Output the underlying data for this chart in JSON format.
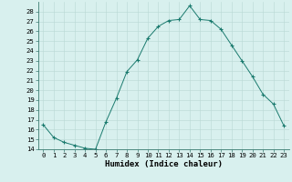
{
  "xlabel": "Humidex (Indice chaleur)",
  "x": [
    0,
    1,
    2,
    3,
    4,
    5,
    6,
    7,
    8,
    9,
    10,
    11,
    12,
    13,
    14,
    15,
    16,
    17,
    18,
    19,
    20,
    21,
    22,
    23
  ],
  "y": [
    16.5,
    15.2,
    14.7,
    14.4,
    14.1,
    14.0,
    16.8,
    19.2,
    21.9,
    23.1,
    25.3,
    26.5,
    27.1,
    27.2,
    28.6,
    27.2,
    27.1,
    26.2,
    24.6,
    23.0,
    21.4,
    19.6,
    18.6,
    16.4
  ],
  "ylim": [
    14,
    29
  ],
  "xlim": [
    -0.5,
    23.5
  ],
  "yticks": [
    14,
    15,
    16,
    17,
    18,
    19,
    20,
    21,
    22,
    23,
    24,
    25,
    26,
    27,
    28
  ],
  "xticks": [
    0,
    1,
    2,
    3,
    4,
    5,
    6,
    7,
    8,
    9,
    10,
    11,
    12,
    13,
    14,
    15,
    16,
    17,
    18,
    19,
    20,
    21,
    22,
    23
  ],
  "line_color": "#1a7a6e",
  "marker": "+",
  "bg_color": "#d8f0ee",
  "grid_color": "#b8d8d4",
  "tick_label_fontsize": 5.2,
  "xlabel_fontsize": 6.5,
  "lw": 0.7,
  "markersize": 3.5,
  "markeredgewidth": 0.8
}
